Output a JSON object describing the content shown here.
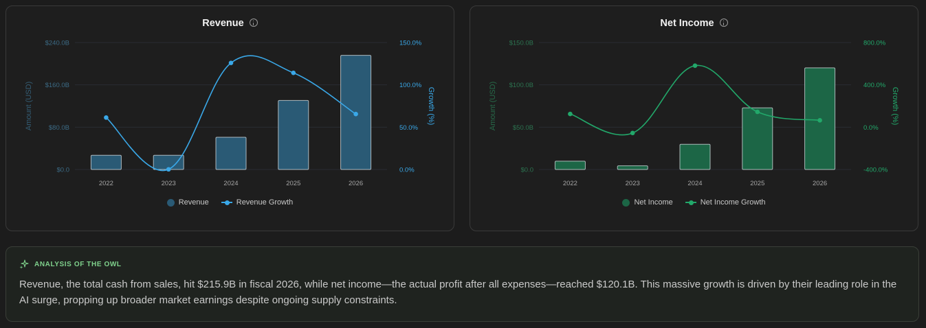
{
  "colors": {
    "revenue_bar": "#2a5a75",
    "revenue_line": "#3aa8e8",
    "netincome_bar": "#1c6646",
    "netincome_line": "#22a86a",
    "grid": "#2c2c33"
  },
  "revenue_card": {
    "title": "Revenue",
    "info_icon": "info-icon",
    "legend": {
      "bar": "Revenue",
      "line": "Revenue Growth"
    }
  },
  "netincome_card": {
    "title": "Net Income",
    "info_icon": "info-icon",
    "legend": {
      "bar": "Net Income",
      "line": "Net Income Growth"
    }
  },
  "analysis": {
    "icon": "sparkle-icon",
    "heading": "ANALYSIS OF THE OWL",
    "text": "Revenue, the total cash from sales, hit $215.9B in fiscal 2026, while net income—the actual profit after all expenses—reached $120.1B. This massive growth is driven by their leading role in the AI surge, propping up broader market earnings despite ongoing supply constraints."
  },
  "chart_data": [
    {
      "type": "bar",
      "title": "Revenue",
      "categories": [
        "2022",
        "2023",
        "2024",
        "2025",
        "2026"
      ],
      "ylabel": "Amount (USD)",
      "y2label": "Growth (%)",
      "ylim": [
        0,
        240
      ],
      "y2lim": [
        0,
        150
      ],
      "yticks": [
        "$0.0",
        "$80.0B",
        "$160.0B",
        "$240.0B"
      ],
      "y2ticks": [
        "0.0%",
        "50.0%",
        "100.0%",
        "150.0%"
      ],
      "grid": true,
      "legend": "bottom",
      "series": [
        {
          "name": "Revenue",
          "type": "bar",
          "axis": "left",
          "values": [
            26.9,
            27.0,
            60.9,
            130.5,
            215.9
          ]
        },
        {
          "name": "Revenue Growth",
          "type": "line",
          "axis": "right",
          "values": [
            61.4,
            0.2,
            125.9,
            114.2,
            65.5
          ]
        }
      ]
    },
    {
      "type": "bar",
      "title": "Net Income",
      "categories": [
        "2022",
        "2023",
        "2024",
        "2025",
        "2026"
      ],
      "ylabel": "Amount (USD)",
      "y2label": "Growth (%)",
      "ylim": [
        0,
        150
      ],
      "y2lim": [
        -400,
        800
      ],
      "yticks": [
        "$0.0",
        "$50.0B",
        "$100.0B",
        "$150.0B"
      ],
      "y2ticks": [
        "-400.0%",
        "0.0%",
        "400.0%",
        "800.0%"
      ],
      "grid": true,
      "legend": "bottom",
      "series": [
        {
          "name": "Net Income",
          "type": "bar",
          "axis": "left",
          "values": [
            9.8,
            4.4,
            29.8,
            72.9,
            120.1
          ]
        },
        {
          "name": "Net Income Growth",
          "type": "line",
          "axis": "right",
          "values": [
            125.1,
            -55.2,
            581.3,
            144.9,
            64.8
          ]
        }
      ]
    }
  ]
}
